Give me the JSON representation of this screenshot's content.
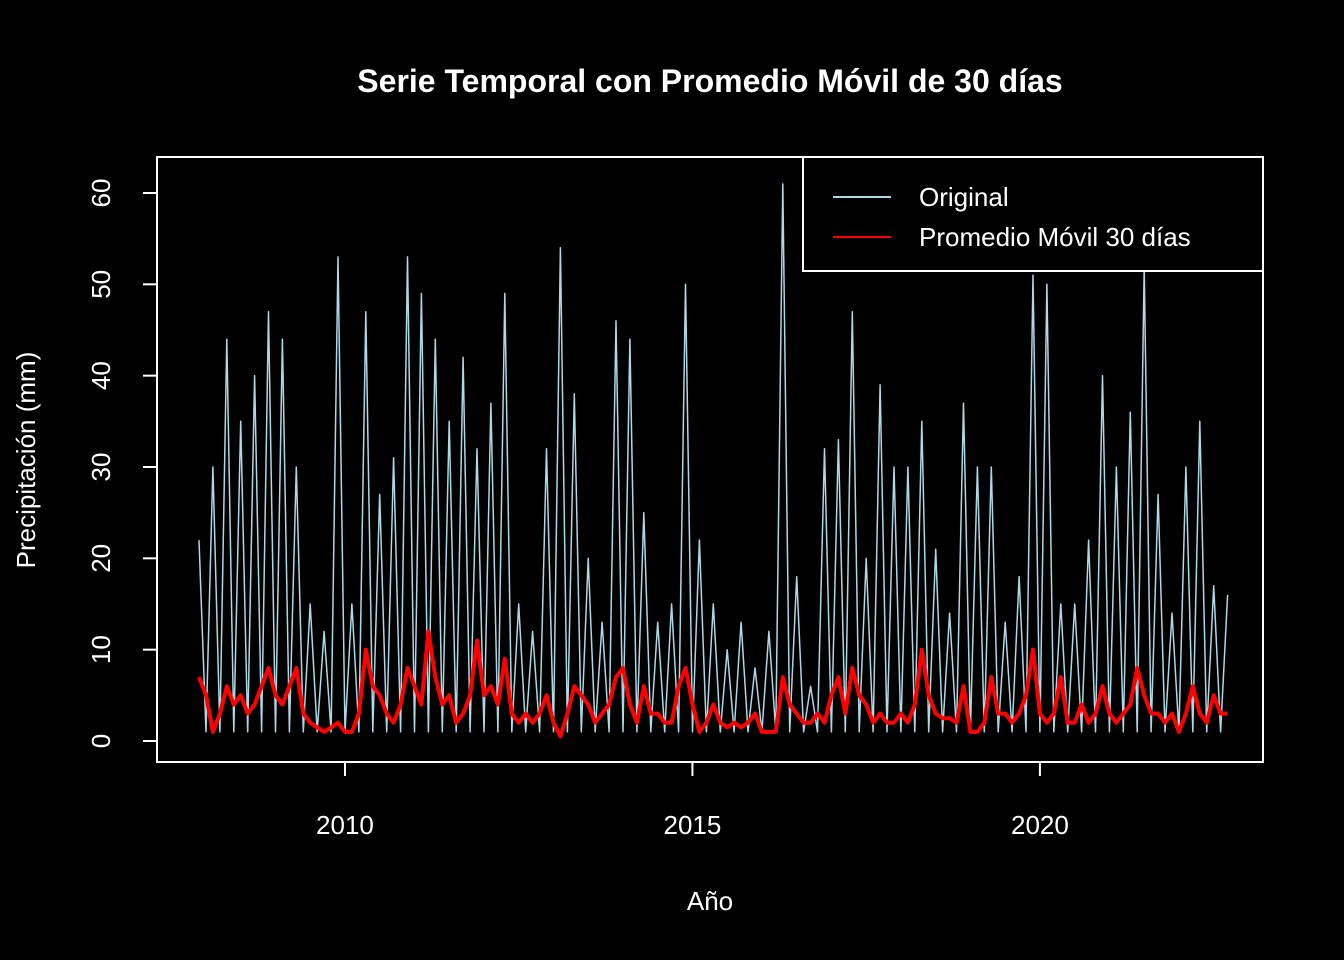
{
  "chart_data": {
    "type": "line",
    "title": "Serie Temporal con Promedio Móvil de 30 días",
    "xlabel": "Año",
    "ylabel": "Precipitación (mm)",
    "x": [
      2007.9,
      2008.0,
      2008.1,
      2008.2,
      2008.3,
      2008.4,
      2008.5,
      2008.6,
      2008.7,
      2008.8,
      2008.9,
      2009.0,
      2009.1,
      2009.2,
      2009.3,
      2009.4,
      2009.5,
      2009.6,
      2009.7,
      2009.8,
      2009.9,
      2010.0,
      2010.1,
      2010.2,
      2010.3,
      2010.4,
      2010.5,
      2010.6,
      2010.7,
      2010.8,
      2010.9,
      2011.0,
      2011.1,
      2011.2,
      2011.3,
      2011.4,
      2011.5,
      2011.6,
      2011.7,
      2011.8,
      2011.9,
      2012.0,
      2012.1,
      2012.2,
      2012.3,
      2012.4,
      2012.5,
      2012.6,
      2012.7,
      2012.8,
      2012.9,
      2013.0,
      2013.1,
      2013.2,
      2013.3,
      2013.4,
      2013.5,
      2013.6,
      2013.7,
      2013.8,
      2013.9,
      2014.0,
      2014.1,
      2014.2,
      2014.3,
      2014.4,
      2014.5,
      2014.6,
      2014.7,
      2014.8,
      2014.9,
      2015.0,
      2015.1,
      2015.2,
      2015.3,
      2015.4,
      2015.5,
      2015.6,
      2015.7,
      2015.8,
      2015.9,
      2016.0,
      2016.1,
      2016.2,
      2016.3,
      2016.4,
      2016.5,
      2016.6,
      2016.7,
      2016.8,
      2016.9,
      2017.0,
      2017.1,
      2017.2,
      2017.3,
      2017.4,
      2017.5,
      2017.6,
      2017.7,
      2017.8,
      2017.9,
      2018.0,
      2018.1,
      2018.2,
      2018.3,
      2018.4,
      2018.5,
      2018.6,
      2018.7,
      2018.8,
      2018.9,
      2019.0,
      2019.1,
      2019.2,
      2019.3,
      2019.4,
      2019.5,
      2019.6,
      2019.7,
      2019.8,
      2019.9,
      2020.0,
      2020.1,
      2020.2,
      2020.3,
      2020.4,
      2020.5,
      2020.6,
      2020.7,
      2020.8,
      2020.9,
      2021.0,
      2021.1,
      2021.2,
      2021.3,
      2021.4,
      2021.5,
      2021.6,
      2021.7,
      2021.8,
      2021.9,
      2022.0,
      2022.1,
      2022.2,
      2022.3,
      2022.4,
      2022.5,
      2022.6,
      2022.7
    ],
    "series": [
      {
        "name": "Original",
        "color": "#add8e6",
        "values": [
          22,
          1,
          30,
          1,
          44,
          1,
          35,
          1,
          40,
          1,
          47,
          1,
          44,
          1,
          30,
          1,
          15,
          1,
          12,
          1,
          53,
          1,
          15,
          1,
          47,
          1,
          27,
          1,
          31,
          1,
          53,
          1,
          49,
          1,
          44,
          1,
          35,
          1,
          42,
          1,
          32,
          1,
          37,
          1,
          49,
          1,
          15,
          1,
          12,
          1,
          32,
          1,
          54,
          1,
          38,
          1,
          20,
          1,
          13,
          1,
          46,
          1,
          44,
          1,
          25,
          1,
          13,
          1,
          15,
          1,
          50,
          1,
          22,
          1,
          15,
          1,
          10,
          1,
          13,
          1,
          8,
          1,
          12,
          1,
          61,
          1,
          18,
          1,
          6,
          1,
          32,
          1,
          33,
          1,
          47,
          1,
          20,
          1,
          39,
          1,
          30,
          1,
          30,
          1,
          35,
          1,
          21,
          1,
          14,
          1,
          37,
          1,
          30,
          1,
          30,
          1,
          13,
          1,
          18,
          1,
          51,
          1,
          50,
          1,
          15,
          1,
          15,
          1,
          22,
          1,
          40,
          1,
          30,
          1,
          36,
          1,
          52,
          1,
          27,
          1,
          14,
          1,
          30,
          1,
          35,
          1,
          17,
          1,
          16
        ]
      },
      {
        "name": "Promedio Móvil 30 días",
        "color": "#ff0000",
        "values": [
          7,
          5,
          1,
          3,
          6,
          4,
          5,
          3,
          4,
          6,
          8,
          5,
          4,
          6,
          8,
          3,
          2,
          1.5,
          1,
          1.5,
          2,
          1,
          1,
          3,
          10,
          6,
          5,
          3,
          2,
          4,
          8,
          6,
          4,
          12,
          7,
          4,
          5,
          2,
          3,
          5,
          11,
          5,
          6,
          4,
          9,
          3,
          2,
          3,
          2,
          3,
          5,
          2,
          0.5,
          3,
          6,
          5,
          4,
          2,
          3,
          4,
          7,
          8,
          4,
          2,
          6,
          3,
          3,
          2,
          2,
          6,
          8,
          4,
          1,
          2,
          4,
          2,
          1.5,
          2,
          1.5,
          2,
          3,
          1,
          1,
          1,
          7,
          4,
          3,
          2,
          2,
          3,
          2,
          5,
          7,
          3,
          8,
          5,
          4,
          2,
          3,
          2,
          2,
          3,
          2,
          4,
          10,
          5,
          3,
          2.5,
          2.5,
          2,
          6,
          1,
          1,
          2,
          7,
          3,
          3,
          2,
          3,
          5,
          10,
          3,
          2,
          3,
          7,
          2,
          2,
          4,
          2,
          3,
          6,
          3,
          2,
          3,
          4,
          8,
          5,
          3,
          3,
          2,
          3,
          1,
          3,
          6,
          3,
          2,
          5,
          3,
          3
        ]
      }
    ],
    "xlim": [
      2007.295,
      2023.21
    ],
    "xticks": [
      2010,
      2015,
      2020
    ],
    "ylim": [
      -2.3,
      63.94
    ],
    "yticks": [
      0,
      10,
      20,
      30,
      40,
      50,
      60
    ],
    "legend": "top-right"
  }
}
